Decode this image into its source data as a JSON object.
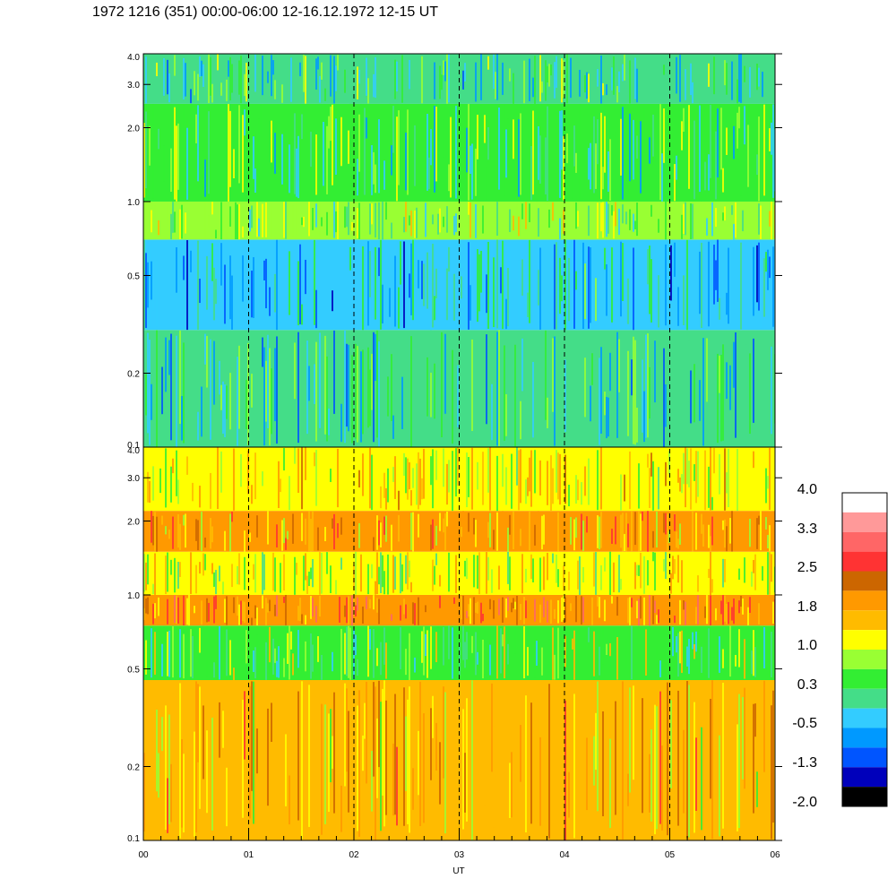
{
  "chart_data": {
    "type": "heatmap",
    "title": "1972 1216 (351) 00:00-06:00 12-16.12.1972  12-15 UT",
    "xlabel": "UT",
    "x_ticks": [
      "00",
      "01",
      "02",
      "03",
      "04",
      "05",
      "06"
    ],
    "xlim": [
      0,
      6
    ],
    "y_scale": "log",
    "ylim": [
      0.1,
      4.0
    ],
    "y_ticks": [
      "0.1",
      "0.2",
      "0.5",
      "1.0",
      "2.0",
      "3.0",
      "4.0"
    ],
    "panels": [
      {
        "name": "upper",
        "description_bands": [
          {
            "y_from": 0.1,
            "y_to": 0.3,
            "level": -0.2
          },
          {
            "y_from": 0.3,
            "y_to": 0.7,
            "level": -0.5
          },
          {
            "y_from": 0.7,
            "y_to": 1.0,
            "level": 0.6
          },
          {
            "y_from": 1.0,
            "y_to": 2.5,
            "level": 0.2
          },
          {
            "y_from": 2.5,
            "y_to": 4.0,
            "level": 0.0
          }
        ]
      },
      {
        "name": "lower",
        "description_bands": [
          {
            "y_from": 0.1,
            "y_to": 0.45,
            "level": 1.6
          },
          {
            "y_from": 0.45,
            "y_to": 0.75,
            "level": 0.5
          },
          {
            "y_from": 0.75,
            "y_to": 1.0,
            "level": 2.1
          },
          {
            "y_from": 1.0,
            "y_to": 1.5,
            "level": 1.0
          },
          {
            "y_from": 1.5,
            "y_to": 2.2,
            "level": 1.8
          },
          {
            "y_from": 2.2,
            "y_to": 4.0,
            "level": 1.2
          }
        ]
      }
    ],
    "dashed_lines_x": [
      1,
      2,
      3,
      4,
      5
    ],
    "colorbar": {
      "labels": [
        "4.0",
        "3.3",
        "2.5",
        "1.8",
        "1.0",
        "0.3",
        "-0.5",
        "-1.3",
        "-2.0"
      ],
      "colors": [
        "#ffffff",
        "#ff9999",
        "#ff6666",
        "#ff3333",
        "#cc6600",
        "#ff9900",
        "#ffbb00",
        "#ffff00",
        "#99ff33",
        "#33ee33",
        "#44dd88",
        "#33ccff",
        "#0099ff",
        "#0055ff",
        "#0000bb",
        "#000000"
      ]
    }
  }
}
